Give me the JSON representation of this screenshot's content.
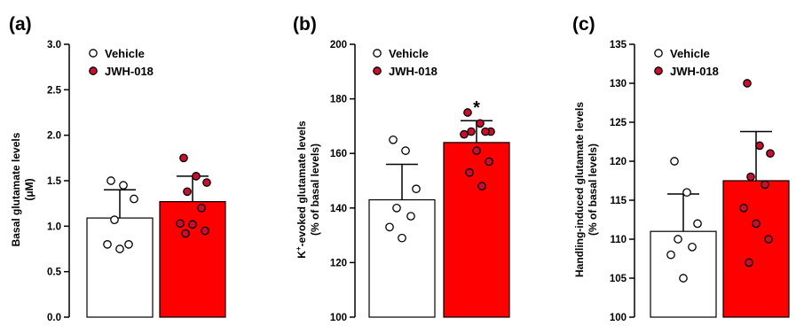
{
  "colors": {
    "vehicle_fill": "#ffffff",
    "jwh_fill": "#ff0000",
    "jwh_point": "#c8102e",
    "stroke": "#000000"
  },
  "chart_data": [
    {
      "type": "bar",
      "panel_label": "(a)",
      "ylabel_lines": [
        "Basal glutamate levels",
        "(μM)"
      ],
      "ylabel_sup": "",
      "ylim": [
        0.0,
        3.0
      ],
      "yticks": [
        0.0,
        0.5,
        1.0,
        1.5,
        2.0,
        2.5,
        3.0
      ],
      "ytick_labels": [
        "0.0",
        "0.5",
        "1.0",
        "1.5",
        "2.0",
        "2.5",
        "3.0"
      ],
      "legend": [
        "Vehicle",
        "JWH-018"
      ],
      "legend_position": "top-left",
      "categories": [
        "Vehicle",
        "JWH-018"
      ],
      "values": [
        1.09,
        1.27
      ],
      "errors": [
        0.31,
        0.28
      ],
      "points": [
        [
          1.5,
          1.45,
          1.3,
          1.07,
          0.8,
          0.8,
          0.75
        ],
        [
          1.75,
          1.55,
          1.48,
          1.38,
          1.2,
          1.03,
          1.02,
          0.95,
          0.92
        ]
      ],
      "significance": [
        "",
        ""
      ]
    },
    {
      "type": "bar",
      "panel_label": "(b)",
      "ylabel_lines": [
        "-evoked glutamate levels",
        "(% of basal levels)"
      ],
      "ylabel_prefix": "K",
      "ylabel_sup": "+",
      "ylim": [
        100,
        200
      ],
      "yticks": [
        100,
        120,
        140,
        160,
        180,
        200
      ],
      "ytick_labels": [
        "100",
        "120",
        "140",
        "160",
        "180",
        "200"
      ],
      "legend": [
        "Vehicle",
        "JWH-018"
      ],
      "legend_position": "top-left",
      "categories": [
        "Vehicle",
        "JWH-018"
      ],
      "values": [
        143,
        164
      ],
      "errors": [
        13,
        8
      ],
      "points": [
        [
          165,
          161,
          147,
          140,
          137,
          133,
          129
        ],
        [
          175,
          171,
          168,
          168,
          168,
          167,
          161,
          157,
          153,
          148
        ]
      ],
      "significance": [
        "",
        "*"
      ]
    },
    {
      "type": "bar",
      "panel_label": "(c)",
      "ylabel_lines": [
        "Handling-induced glutamate levels",
        "(% of basal levels)"
      ],
      "ylabel_sup": "",
      "ylim": [
        100,
        135
      ],
      "yticks": [
        100,
        105,
        110,
        115,
        120,
        125,
        130,
        135
      ],
      "ytick_labels": [
        "100",
        "105",
        "110",
        "115",
        "120",
        "125",
        "130",
        "135"
      ],
      "legend": [
        "Vehicle",
        "JWH-018"
      ],
      "legend_position": "top-left",
      "categories": [
        "Vehicle",
        "JWH-018"
      ],
      "values": [
        111.0,
        117.5
      ],
      "errors": [
        4.8,
        6.3
      ],
      "points": [
        [
          120,
          116,
          112,
          110,
          109,
          108,
          105
        ],
        [
          130,
          122,
          121,
          118,
          117,
          114,
          112,
          110,
          107
        ]
      ],
      "significance": [
        "",
        ""
      ]
    }
  ]
}
